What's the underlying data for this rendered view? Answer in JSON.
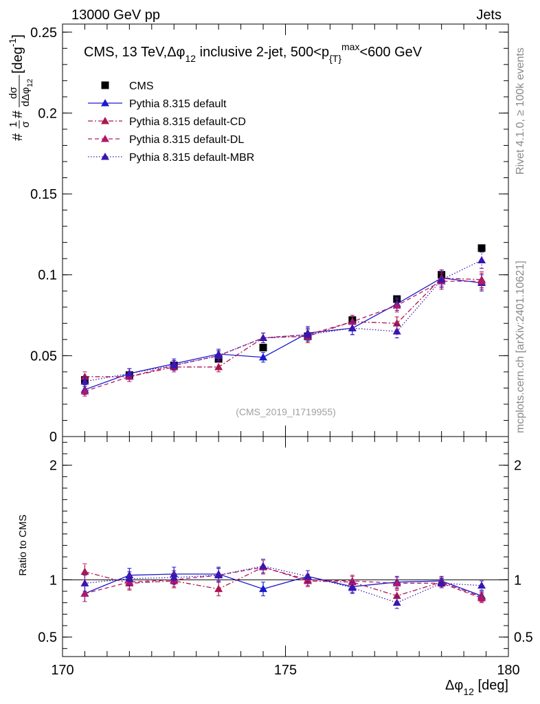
{
  "header": {
    "left": "13000 GeV pp",
    "right": "Jets"
  },
  "side_labels": {
    "rivet": "Rivet 4.1.0, ≥ 100k events",
    "mcplots": "mcplots.cern.ch [arXiv:2401.10621]"
  },
  "colors": {
    "cms": "#000000",
    "default": "#1a1acc",
    "cd": "#aa1650",
    "dl": "#b0186a",
    "mbr": "#3a16b0",
    "side_text": "#888888",
    "watermark": "#a0a0a0"
  },
  "chart_data": [
    {
      "type": "scatter",
      "panel": "main",
      "title_parts": {
        "a": "CMS, 13 TeV,",
        "b": "Δφ",
        "b_sub": "12",
        "c": " inclusive 2-jet, 500<p",
        "c_sub": "{T}",
        "c_sup": "max",
        "d": "<600 GeV"
      },
      "ylabel_parts": {
        "a": "#",
        "frac1_num": "1",
        "frac1_den": "σ",
        "b": "#",
        "frac2_num": "dσ",
        "frac2_den": "dΔφ",
        "frac2_den_sub": "12",
        "c": " [deg",
        "c_sup": "-1",
        "d": "]"
      },
      "watermark": "(CMS_2019_I1719955)",
      "xlim": [
        170,
        180
      ],
      "ylim": [
        0,
        0.255
      ],
      "yticks": [
        {
          "v": 0,
          "label": "0"
        },
        {
          "v": 0.05,
          "label": "0.05"
        },
        {
          "v": 0.1,
          "label": "0.1"
        },
        {
          "v": 0.15,
          "label": "0.15"
        },
        {
          "v": 0.2,
          "label": "0.2"
        },
        {
          "v": 0.25,
          "label": "0.25"
        }
      ],
      "x": [
        170.5,
        171.5,
        172.5,
        173.5,
        174.5,
        175.5,
        176.5,
        177.5,
        178.5,
        179.4
      ],
      "series": [
        {
          "name": "CMS",
          "key": "cms",
          "marker": "square",
          "dash": "none",
          "values": [
            0.035,
            0.038,
            0.044,
            0.048,
            0.055,
            0.062,
            0.072,
            0.085,
            0.1,
            0.1165
          ],
          "errors": [
            0.002,
            0.002,
            0.002,
            0.002,
            0.002,
            0.002,
            0.002,
            0.002,
            0.002,
            0.002
          ]
        },
        {
          "name": "Pythia 8.315 default",
          "key": "default",
          "marker": "triangle",
          "dash": "solid",
          "values": [
            0.029,
            0.039,
            0.045,
            0.051,
            0.049,
            0.064,
            0.067,
            0.082,
            0.098,
            0.095
          ],
          "errors": [
            0.003,
            0.003,
            0.003,
            0.003,
            0.003,
            0.004,
            0.004,
            0.004,
            0.005,
            0.005
          ]
        },
        {
          "name": "Pythia 8.315 default-CD",
          "key": "cd",
          "marker": "triangle",
          "dash": "dashdot",
          "values": [
            0.037,
            0.037,
            0.043,
            0.043,
            0.061,
            0.062,
            0.071,
            0.07,
            0.098,
            0.097
          ],
          "errors": [
            0.003,
            0.003,
            0.003,
            0.003,
            0.003,
            0.004,
            0.004,
            0.004,
            0.005,
            0.005
          ]
        },
        {
          "name": "Pythia 8.315 default-DL",
          "key": "dl",
          "marker": "triangle",
          "dash": "dashed",
          "values": [
            0.028,
            0.037,
            0.044,
            0.05,
            0.061,
            0.063,
            0.071,
            0.081,
            0.096,
            0.096
          ],
          "errors": [
            0.003,
            0.003,
            0.003,
            0.003,
            0.003,
            0.004,
            0.004,
            0.004,
            0.005,
            0.005
          ]
        },
        {
          "name": "Pythia 8.315 default-MBR",
          "key": "mbr",
          "marker": "triangle",
          "dash": "dotted",
          "values": [
            0.034,
            0.039,
            0.044,
            0.05,
            0.061,
            0.063,
            0.067,
            0.065,
            0.097,
            0.109
          ],
          "errors": [
            0.003,
            0.003,
            0.003,
            0.003,
            0.003,
            0.004,
            0.004,
            0.004,
            0.005,
            0.005
          ]
        }
      ]
    },
    {
      "type": "scatter",
      "panel": "ratio",
      "ylabel": "Ratio to CMS",
      "xlabel_parts": {
        "a": "Δφ",
        "a_sub": "12",
        "b": " [deg]"
      },
      "xlim": [
        170,
        180
      ],
      "ylim": [
        0.33,
        2.25
      ],
      "xticks": [
        {
          "v": 170,
          "label": "170"
        },
        {
          "v": 175,
          "label": "175"
        },
        {
          "v": 180,
          "label": "180"
        }
      ],
      "yticks": [
        {
          "v": 0.5,
          "label": "0.5"
        },
        {
          "v": 1,
          "label": "1"
        },
        {
          "v": 2,
          "label": "2"
        }
      ],
      "reference": 1,
      "x": [
        170.5,
        171.5,
        172.5,
        173.5,
        174.5,
        175.5,
        176.5,
        177.5,
        178.5,
        179.4
      ],
      "series": [
        {
          "name": "Pythia 8.315 default",
          "key": "default",
          "dash": "solid",
          "values": [
            0.88,
            1.04,
            1.05,
            1.05,
            0.92,
            1.03,
            0.94,
            0.98,
            0.99,
            0.86
          ],
          "errors": [
            0.07,
            0.06,
            0.06,
            0.06,
            0.06,
            0.05,
            0.05,
            0.05,
            0.04,
            0.04
          ]
        },
        {
          "name": "Pythia 8.315 default-CD",
          "key": "cd",
          "dash": "dashdot",
          "values": [
            1.07,
            0.97,
            0.99,
            0.92,
            1.11,
            0.99,
            0.98,
            0.86,
            0.98,
            0.85
          ],
          "errors": [
            0.07,
            0.06,
            0.06,
            0.06,
            0.06,
            0.05,
            0.05,
            0.05,
            0.04,
            0.04
          ]
        },
        {
          "name": "Pythia 8.315 default-DL",
          "key": "dl",
          "dash": "dashed",
          "values": [
            0.88,
            0.98,
            1.0,
            1.04,
            1.11,
            1.0,
            0.99,
            0.97,
            0.97,
            0.84
          ],
          "errors": [
            0.07,
            0.06,
            0.06,
            0.06,
            0.06,
            0.05,
            0.05,
            0.05,
            0.04,
            0.04
          ]
        },
        {
          "name": "Pythia 8.315 default-MBR",
          "key": "mbr",
          "dash": "dotted",
          "values": [
            0.97,
            1.01,
            1.02,
            1.04,
            1.12,
            1.03,
            0.93,
            0.8,
            0.97,
            0.95
          ],
          "errors": [
            0.07,
            0.06,
            0.06,
            0.06,
            0.06,
            0.05,
            0.05,
            0.05,
            0.04,
            0.04
          ]
        }
      ]
    }
  ]
}
